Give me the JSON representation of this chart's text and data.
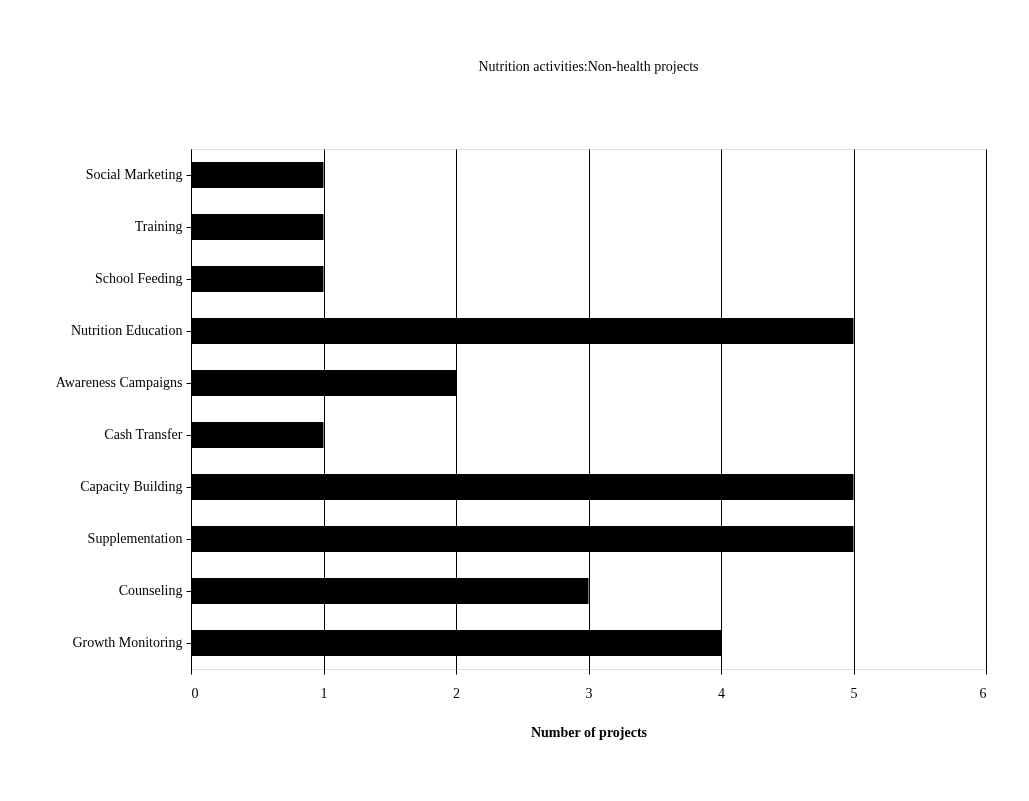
{
  "chart_data": {
    "type": "bar",
    "orientation": "horizontal",
    "title": "Nutrition activities:Non-health projects",
    "xlabel": "Number of projects",
    "categories": [
      "Social Marketing",
      "Training",
      "School Feeding",
      "Nutrition Education",
      "Awareness Campaigns",
      "Cash Transfer",
      "Capacity Building",
      "Supplementation",
      "Counseling",
      "Growth Monitoring"
    ],
    "values": [
      1,
      1,
      1,
      5,
      2,
      1,
      5,
      5,
      3,
      4
    ],
    "color": "#000000",
    "xlim": [
      0,
      6
    ],
    "xticks": [
      0,
      1,
      2,
      3,
      4,
      5,
      6
    ],
    "grid": "x"
  }
}
